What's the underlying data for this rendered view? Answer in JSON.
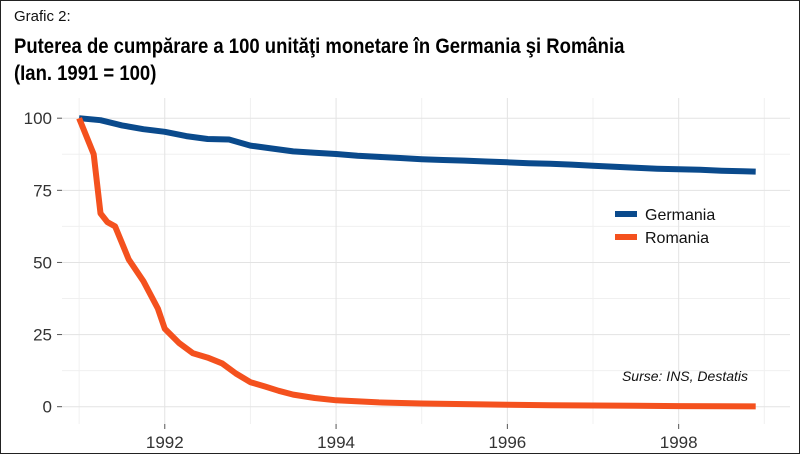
{
  "header": {
    "kicker": "Grafic 2:",
    "title_line1": "Puterea de cumpărare a 100 unităţi monetare în Germania şi România",
    "title_line2": "(Ian. 1991 = 100)"
  },
  "chart_data": {
    "type": "line",
    "title": "Puterea de cumpărare a 100 unităţi monetare în Germania şi România (Ian. 1991 = 100)",
    "xlabel": "",
    "ylabel": "",
    "xlim": [
      1990.8,
      1999.3
    ],
    "ylim": [
      -6,
      107
    ],
    "x_ticks": [
      1992,
      1994,
      1996,
      1998
    ],
    "x_tick_labels": [
      "1992",
      "1994",
      "1996",
      "1998"
    ],
    "y_ticks": [
      0,
      25,
      50,
      75,
      100
    ],
    "y_tick_labels": [
      "0",
      "25",
      "50",
      "75",
      "100"
    ],
    "grid": true,
    "legend_position": "right",
    "source": "Surse: INS, Destatis",
    "series": [
      {
        "name": "Germania",
        "color": "#0a4a8c",
        "x": [
          1991.0,
          1991.25,
          1991.5,
          1991.75,
          1992.0,
          1992.25,
          1992.5,
          1992.75,
          1993.0,
          1993.25,
          1993.5,
          1993.75,
          1994.0,
          1994.25,
          1994.5,
          1994.75,
          1995.0,
          1995.25,
          1995.5,
          1995.75,
          1996.0,
          1996.25,
          1996.5,
          1996.75,
          1997.0,
          1997.25,
          1997.5,
          1997.75,
          1998.0,
          1998.25,
          1998.5,
          1998.75,
          1998.9
        ],
        "y": [
          100,
          99.3,
          97.5,
          96.2,
          95.3,
          93.8,
          92.8,
          92.6,
          90.5,
          89.5,
          88.5,
          88.0,
          87.6,
          87.0,
          86.6,
          86.2,
          85.8,
          85.5,
          85.3,
          85.0,
          84.7,
          84.4,
          84.2,
          83.9,
          83.5,
          83.2,
          82.8,
          82.5,
          82.3,
          82.1,
          81.8,
          81.6,
          81.5
        ]
      },
      {
        "name": "Romania",
        "color": "#f4511e",
        "x": [
          1991.0,
          1991.17,
          1991.25,
          1991.33,
          1991.42,
          1991.58,
          1991.75,
          1991.92,
          1992.0,
          1992.17,
          1992.33,
          1992.5,
          1992.67,
          1992.83,
          1993.0,
          1993.17,
          1993.33,
          1993.5,
          1993.75,
          1994.0,
          1994.5,
          1995.0,
          1995.5,
          1996.0,
          1996.5,
          1997.0,
          1997.5,
          1998.0,
          1998.5,
          1998.9
        ],
        "y": [
          100,
          87.5,
          67,
          64,
          62.5,
          51,
          43.5,
          34,
          27,
          22,
          18.5,
          17,
          15,
          11.5,
          8.5,
          7,
          5.5,
          4.2,
          3.0,
          2.2,
          1.5,
          1.1,
          0.9,
          0.7,
          0.5,
          0.4,
          0.3,
          0.2,
          0.15,
          0.1
        ]
      }
    ]
  }
}
